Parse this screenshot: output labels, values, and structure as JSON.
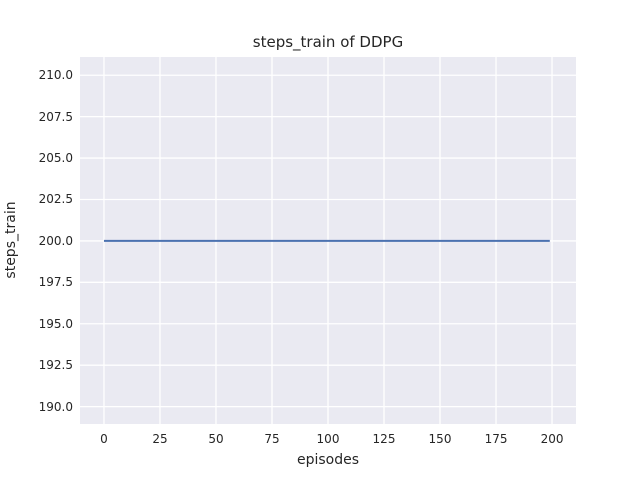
{
  "chart_data": {
    "type": "line",
    "title": "steps_train of DDPG",
    "xlabel": "episodes",
    "ylabel": "steps_train",
    "xlim": [
      -10.7,
      210.7
    ],
    "ylim": [
      188.95,
      211.1
    ],
    "xticks": [
      0,
      25,
      50,
      75,
      100,
      125,
      150,
      175,
      200
    ],
    "xtick_labels": [
      "0",
      "25",
      "50",
      "75",
      "100",
      "125",
      "150",
      "175",
      "200"
    ],
    "yticks": [
      190.0,
      192.5,
      195.0,
      197.5,
      200.0,
      202.5,
      205.0,
      207.5,
      210.0
    ],
    "ytick_labels": [
      "190.0",
      "192.5",
      "195.0",
      "197.5",
      "200.0",
      "202.5",
      "205.0",
      "207.5",
      "210.0"
    ],
    "grid": true,
    "legend": false,
    "series": [
      {
        "name": "steps_train",
        "x": [
          0,
          199
        ],
        "y": [
          200,
          200
        ],
        "color": "#4c72b0",
        "line_width": 2
      }
    ],
    "colors": {
      "figure_background": "#ffffff",
      "axes_background": "#eaeaf2",
      "grid": "#ffffff",
      "text": "#262626"
    }
  }
}
